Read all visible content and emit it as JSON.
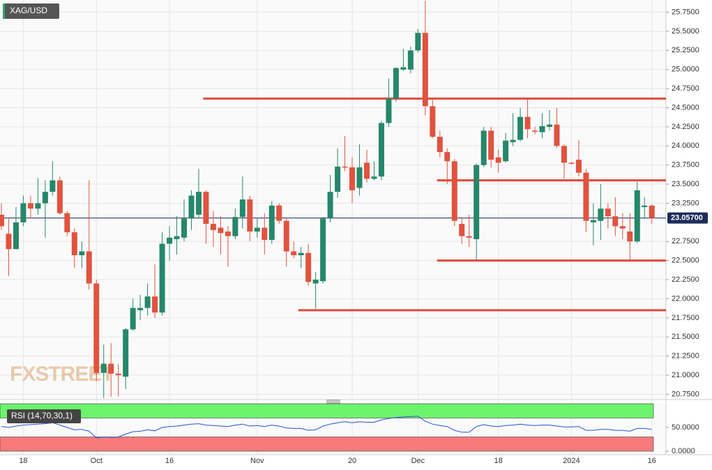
{
  "chart_data": [
    {
      "type": "candlestick",
      "title": "XAG/USD",
      "watermark": "FXSTREET",
      "categories": [
        null,
        null,
        null,
        "18",
        null,
        null,
        null,
        null,
        null,
        null,
        null,
        null,
        null,
        "Oct",
        null,
        null,
        null,
        null,
        null,
        null,
        null,
        null,
        null,
        "16",
        null,
        null,
        null,
        null,
        null,
        null,
        null,
        null,
        null,
        null,
        null,
        "Nov",
        null,
        null,
        null,
        null,
        null,
        null,
        null,
        null,
        null,
        null,
        null,
        null,
        "20",
        null,
        null,
        null,
        null,
        null,
        null,
        null,
        null,
        "Dec",
        null,
        null,
        null,
        null,
        null,
        null,
        null,
        null,
        null,
        null,
        "18",
        null,
        null,
        null,
        null,
        null,
        null,
        null,
        null,
        null,
        "2024",
        null,
        null,
        null,
        null,
        null,
        null,
        null,
        null,
        null,
        null,
        "16"
      ],
      "open": [
        23.1,
        22.85,
        22.65,
        23.0,
        23.25,
        23.18,
        23.25,
        23.4,
        23.55,
        23.12,
        22.87,
        22.57,
        22.62,
        22.2,
        21.03,
        21.15,
        21.02,
        20.98,
        21.6,
        21.85,
        21.88,
        22.03,
        21.82,
        22.72,
        22.78,
        22.8,
        23.05,
        23.1,
        23.4,
        22.98,
        22.93,
        22.88,
        22.82,
        23.07,
        23.3,
        22.88,
        22.93,
        22.77,
        23.22,
        23.02,
        22.62,
        22.57,
        22.6,
        22.2,
        22.23,
        23.05,
        23.4,
        23.73,
        23.72,
        23.45,
        23.78,
        23.57,
        23.6,
        24.3,
        24.62,
        25.0,
        25.0,
        25.25,
        25.48,
        24.52,
        24.12,
        23.92,
        23.8,
        22.98,
        22.82,
        22.78,
        23.75,
        24.2,
        23.85,
        23.8,
        24.05,
        24.08,
        24.38,
        24.2,
        24.18,
        24.25,
        24.28,
        24.0,
        23.78,
        23.82,
        23.65,
        23.0,
        23.02,
        23.18,
        23.08,
        22.95,
        22.88,
        22.75,
        23.2,
        23.22
      ],
      "high": [
        23.25,
        23.05,
        23.2,
        23.35,
        23.35,
        23.58,
        23.55,
        23.8,
        23.6,
        23.15,
        22.92,
        22.75,
        23.55,
        22.25,
        21.4,
        21.42,
        21.15,
        21.62,
        22.0,
        22.05,
        22.2,
        22.45,
        22.87,
        22.95,
        23.08,
        23.3,
        23.42,
        23.7,
        23.42,
        23.15,
        23.08,
        22.95,
        23.18,
        23.6,
        23.35,
        23.05,
        23.12,
        23.28,
        23.25,
        23.05,
        22.75,
        22.68,
        22.72,
        22.35,
        23.07,
        23.62,
        23.97,
        24.13,
        23.85,
        24.02,
        23.95,
        23.8,
        24.33,
        24.88,
        25.03,
        25.27,
        25.3,
        25.53,
        25.9,
        24.62,
        24.2,
        23.97,
        23.83,
        23.05,
        23.1,
        23.77,
        24.25,
        24.25,
        23.95,
        24.17,
        24.43,
        24.5,
        24.62,
        24.25,
        24.43,
        24.47,
        24.5,
        24.02,
        23.79,
        24.08,
        23.7,
        23.25,
        23.5,
        23.25,
        23.33,
        23.12,
        23.12,
        23.53,
        23.33,
        23.23
      ],
      "low": [
        22.9,
        22.3,
        22.65,
        22.95,
        23.05,
        23.1,
        22.8,
        23.35,
        23.1,
        22.82,
        22.4,
        22.4,
        22.12,
        20.92,
        20.7,
        20.72,
        20.72,
        20.82,
        21.58,
        21.72,
        21.78,
        21.75,
        21.78,
        22.5,
        22.58,
        22.75,
        22.9,
        23.05,
        22.72,
        22.68,
        22.58,
        22.42,
        22.78,
        22.92,
        22.75,
        22.8,
        22.58,
        22.72,
        22.98,
        22.42,
        22.53,
        22.4,
        22.17,
        21.87,
        22.2,
        23.0,
        23.32,
        23.67,
        23.25,
        23.35,
        23.52,
        23.55,
        23.55,
        24.25,
        24.58,
        24.98,
        24.95,
        25.22,
        24.4,
        24.1,
        23.85,
        23.5,
        22.95,
        22.72,
        22.68,
        22.5,
        23.72,
        23.72,
        23.65,
        23.78,
        24.0,
        24.06,
        24.1,
        24.15,
        24.1,
        24.2,
        23.97,
        23.57,
        23.76,
        23.6,
        22.87,
        22.7,
        22.77,
        22.92,
        22.82,
        22.78,
        22.5,
        22.73,
        23.05,
        22.98
      ],
      "close": [
        22.95,
        22.65,
        23.0,
        23.25,
        23.18,
        23.25,
        23.4,
        23.55,
        23.12,
        22.87,
        22.57,
        22.62,
        22.2,
        21.03,
        21.15,
        21.02,
        21.0,
        21.6,
        21.88,
        21.88,
        22.03,
        21.82,
        22.72,
        22.8,
        22.82,
        23.05,
        23.35,
        23.4,
        22.98,
        22.9,
        22.86,
        22.82,
        23.07,
        23.3,
        22.88,
        22.93,
        22.77,
        23.22,
        23.02,
        22.62,
        22.57,
        22.6,
        22.22,
        22.25,
        23.05,
        23.4,
        23.73,
        23.72,
        23.42,
        23.72,
        23.57,
        23.6,
        24.3,
        24.62,
        25.02,
        25.03,
        25.25,
        25.48,
        24.52,
        24.12,
        23.92,
        23.8,
        23.02,
        22.82,
        22.8,
        23.75,
        24.2,
        23.82,
        23.78,
        24.07,
        24.08,
        24.38,
        24.22,
        24.19,
        24.26,
        24.28,
        24.0,
        23.78,
        23.77,
        23.65,
        23.02,
        23.03,
        23.18,
        23.08,
        22.95,
        22.92,
        22.75,
        23.42,
        23.22,
        23.057
      ],
      "up_color": "#26876a",
      "down_color": "#e0533f",
      "ylim": [
        20.69,
        25.91
      ],
      "yticks": [
        {
          "value": 20.75,
          "label": "20.7500"
        },
        {
          "value": 21.0,
          "label": "21.0000"
        },
        {
          "value": 21.25,
          "label": "21.2500"
        },
        {
          "value": 21.5,
          "label": "21.5000"
        },
        {
          "value": 21.75,
          "label": "21.7500"
        },
        {
          "value": 22.0,
          "label": "22.0000"
        },
        {
          "value": 22.25,
          "label": "22.2500"
        },
        {
          "value": 22.5,
          "label": "22.5000"
        },
        {
          "value": 22.75,
          "label": "22.7500"
        },
        {
          "value": 23.25,
          "label": "23.2500"
        },
        {
          "value": 23.5,
          "label": "23.5000"
        },
        {
          "value": 23.75,
          "label": "23.7500"
        },
        {
          "value": 24.0,
          "label": "24.0000"
        },
        {
          "value": 24.25,
          "label": "24.2500"
        },
        {
          "value": 24.5,
          "label": "24.5000"
        },
        {
          "value": 24.75,
          "label": "24.7500"
        },
        {
          "value": 25.0,
          "label": "25.0000"
        },
        {
          "value": 25.25,
          "label": "25.2500"
        },
        {
          "value": 25.5,
          "label": "25.5000"
        },
        {
          "value": 25.75,
          "label": "25.7500"
        }
      ],
      "last_price": {
        "value": 23.057,
        "label": "23.05700"
      },
      "levels": [
        {
          "value": 24.62,
          "from": 28
        },
        {
          "value": 23.55,
          "from": 60
        },
        {
          "value": 22.5,
          "from": 60
        },
        {
          "value": 21.85,
          "from": 41
        }
      ],
      "level_color": "#e04a3a",
      "grid": true
    },
    {
      "type": "line",
      "title": "RSI (14,70,30,1)",
      "values": [
        52,
        50,
        53,
        55,
        56,
        57,
        58,
        60,
        55,
        50,
        45,
        46,
        42,
        28,
        30,
        29,
        30,
        36,
        41,
        42,
        45,
        43,
        50,
        52,
        53,
        55,
        57,
        58,
        55,
        54,
        53,
        52,
        55,
        57,
        53,
        54,
        52,
        55,
        53,
        49,
        48,
        48,
        44,
        45,
        53,
        57,
        60,
        62,
        60,
        62,
        61,
        61,
        66,
        69,
        71,
        72,
        73,
        74,
        63,
        57,
        54,
        52,
        44,
        40,
        40,
        52,
        56,
        53,
        52,
        54,
        55,
        57,
        55,
        54,
        55,
        55,
        53,
        51,
        51,
        52,
        44,
        44,
        46,
        46,
        44,
        44,
        42,
        48,
        48,
        46
      ],
      "color": "#2a4fd6",
      "ylim": [
        0,
        100
      ],
      "yticks": [
        {
          "value": 0,
          "label": "0.0000"
        },
        {
          "value": 50,
          "label": "50.0000"
        }
      ],
      "bands": [
        {
          "from": 70,
          "to": 100,
          "color": "#6cf46c"
        },
        {
          "from": 0,
          "to": 30,
          "color": "#f87a7a"
        }
      ]
    }
  ]
}
